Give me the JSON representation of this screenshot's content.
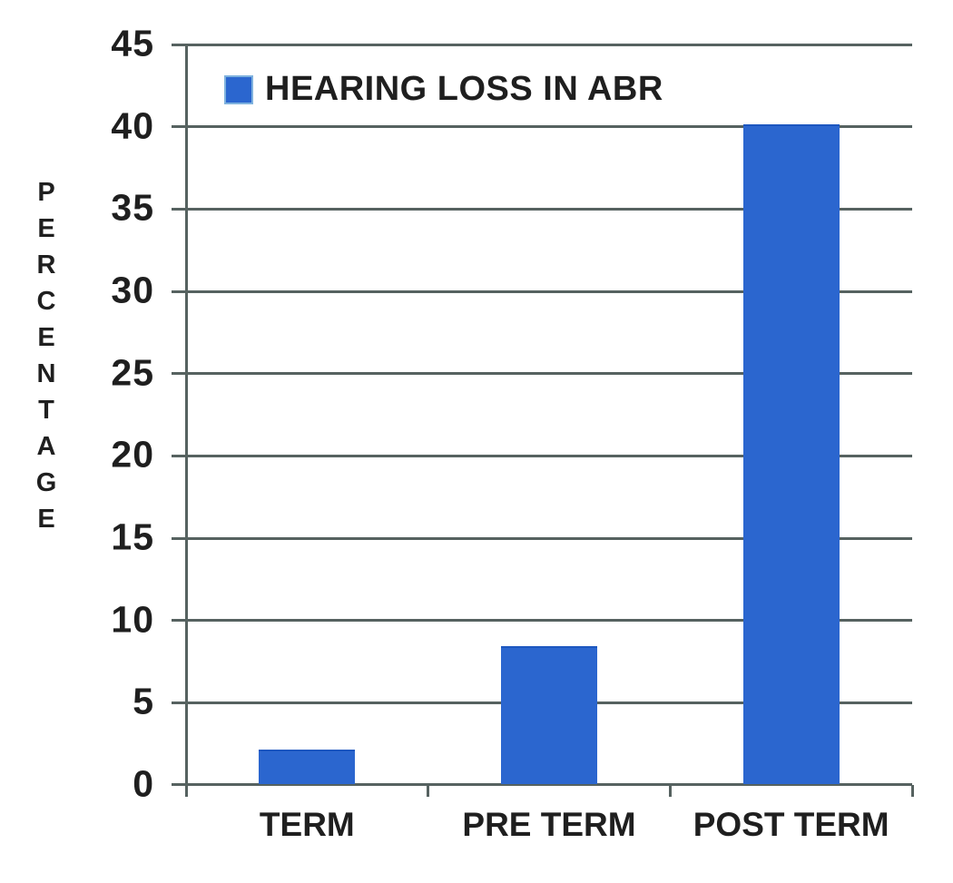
{
  "chart_data": {
    "type": "bar",
    "title": "",
    "legend": {
      "label": "HEARING LOSS IN ABR",
      "position": "top-left-inside"
    },
    "categories": [
      "TERM",
      "PRE TERM",
      "POST TERM"
    ],
    "series": [
      {
        "name": "HEARING LOSS IN ABR",
        "values": [
          2,
          8.3,
          40
        ]
      }
    ],
    "xlabel": "",
    "ylabel": "PERCENTAGE",
    "ylim": [
      0,
      45
    ],
    "yticks": [
      0,
      5,
      10,
      15,
      20,
      25,
      30,
      35,
      40,
      45
    ],
    "grid": "horizontal",
    "colors": {
      "bar": "#2b66cf",
      "grid": "#566260",
      "axis": "#566260",
      "text": "#1f1f1f",
      "background": "#ffffff"
    }
  }
}
